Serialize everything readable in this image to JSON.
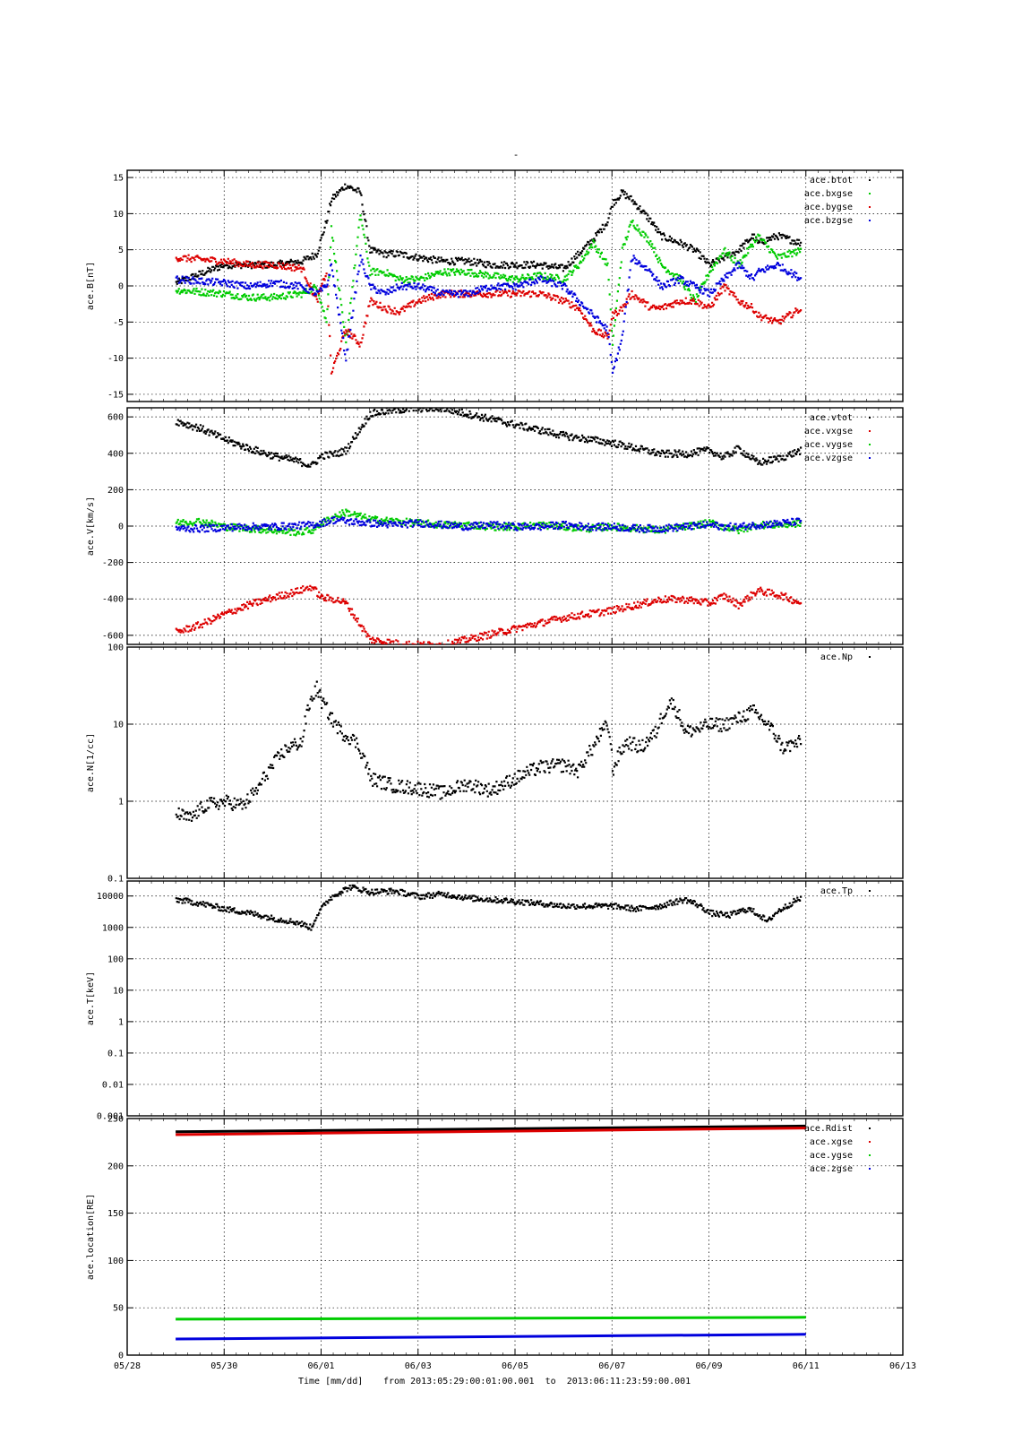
{
  "title": "-",
  "footer": {
    "xlabel": "Time [mm/dd]",
    "range_text": "from 2013:05:29:00:01:00.001  to  2013:06:11:23:59:00.001"
  },
  "x_axis": {
    "range": [
      "05/28",
      "06/13"
    ],
    "ticks": [
      "05/28",
      "05/30",
      "06/01",
      "06/03",
      "06/05",
      "06/07",
      "06/09",
      "06/11",
      "06/13"
    ]
  },
  "chart_data": [
    {
      "type": "scatter",
      "id": "B",
      "ylabel": "ace.B[nT]",
      "ylim": [
        -16,
        16
      ],
      "yticks": [
        -15,
        -10,
        -5,
        0,
        5,
        10,
        15
      ],
      "grid": true,
      "legend_position": "top-right",
      "x": [
        1.0,
        2.0,
        2.5,
        3.0,
        3.6,
        3.9,
        4.1,
        4.2,
        4.5,
        4.8,
        5.0,
        5.3,
        5.6,
        6.0,
        6.5,
        7.0,
        7.5,
        8.0,
        8.5,
        9.0,
        9.3,
        9.6,
        9.9,
        10.0,
        10.2,
        10.4,
        10.8,
        11.0,
        11.4,
        11.7,
        12.0,
        12.3,
        12.6,
        12.9,
        13.0,
        13.4,
        13.9
      ],
      "series": [
        {
          "name": "ace.btot",
          "color": "#000000",
          "values": [
            0.5,
            3.0,
            3.0,
            3.0,
            3.5,
            4.5,
            9.0,
            12.0,
            14.0,
            13.0,
            5.0,
            4.5,
            4.5,
            4.0,
            3.5,
            3.5,
            3.0,
            3.0,
            3.0,
            2.5,
            4.5,
            6.5,
            9.0,
            11.5,
            13.0,
            12.0,
            9.0,
            7.0,
            6.0,
            5.0,
            3.0,
            4.0,
            5.0,
            7.0,
            6.0,
            7.0,
            6.0
          ]
        },
        {
          "name": "ace.bxgse",
          "color": "#00cc00",
          "values": [
            -0.5,
            -1.0,
            -1.5,
            -1.5,
            -1.0,
            0.0,
            -5.0,
            8.0,
            -8.0,
            10.0,
            2.0,
            2.0,
            1.0,
            1.0,
            2.0,
            2.0,
            1.5,
            1.0,
            1.5,
            1.0,
            3.0,
            6.0,
            3.0,
            -8.0,
            5.0,
            9.0,
            6.0,
            3.0,
            1.0,
            -2.0,
            2.0,
            5.0,
            3.0,
            6.0,
            7.0,
            4.0,
            5.0
          ]
        },
        {
          "name": "ace.bygse",
          "color": "#dd0000",
          "values": [
            4.0,
            3.5,
            3.0,
            3.0,
            2.5,
            -2.0,
            2.0,
            -12.0,
            -6.0,
            -8.0,
            -2.0,
            -3.0,
            -3.5,
            -2.0,
            -1.0,
            -1.0,
            -1.0,
            -1.0,
            -1.0,
            -2.0,
            -3.0,
            -6.0,
            -7.0,
            -4.0,
            -3.0,
            -1.0,
            -3.0,
            -3.0,
            -2.0,
            -2.0,
            -3.0,
            0.0,
            -2.0,
            -3.0,
            -4.0,
            -5.0,
            -3.0
          ]
        },
        {
          "name": "ace.bzgse",
          "color": "#0000dd",
          "values": [
            1.0,
            0.5,
            0.0,
            0.5,
            0.0,
            -1.0,
            0.0,
            3.0,
            -10.0,
            4.0,
            0.0,
            -1.0,
            0.0,
            0.0,
            -1.0,
            -1.0,
            0.0,
            0.0,
            1.0,
            0.0,
            -2.0,
            -4.0,
            -6.0,
            -12.0,
            -7.0,
            4.0,
            2.0,
            0.0,
            1.0,
            0.0,
            -1.0,
            1.0,
            3.0,
            1.0,
            2.0,
            3.0,
            1.0
          ]
        }
      ]
    },
    {
      "type": "scatter",
      "id": "V",
      "ylabel": "ace.V[km/s]",
      "ylim": [
        -650,
        650
      ],
      "yticks": [
        -600,
        -400,
        -200,
        0,
        200,
        400,
        600
      ],
      "grid": true,
      "legend_position": "top-right",
      "x": [
        1.0,
        1.5,
        2.0,
        2.5,
        3.0,
        3.5,
        3.8,
        4.0,
        4.3,
        4.5,
        5.0,
        5.5,
        6.0,
        6.5,
        7.0,
        7.5,
        8.0,
        8.5,
        9.0,
        9.5,
        10.0,
        10.5,
        11.0,
        11.5,
        12.0,
        12.3,
        12.6,
        13.0,
        13.5,
        13.9
      ],
      "series": [
        {
          "name": "ace.vtot",
          "color": "#000000",
          "values": [
            580,
            540,
            480,
            430,
            390,
            360,
            335,
            390,
            400,
            420,
            620,
            640,
            650,
            650,
            620,
            590,
            560,
            530,
            500,
            480,
            460,
            430,
            400,
            400,
            420,
            380,
            430,
            350,
            380,
            420
          ]
        },
        {
          "name": "ace.vxgse",
          "color": "#dd0000",
          "values": [
            -580,
            -540,
            -480,
            -430,
            -390,
            -355,
            -330,
            -390,
            -400,
            -420,
            -620,
            -640,
            -650,
            -650,
            -620,
            -590,
            -560,
            -530,
            -500,
            -480,
            -460,
            -430,
            -400,
            -400,
            -420,
            -380,
            -430,
            -350,
            -380,
            -420
          ]
        },
        {
          "name": "ace.vygse",
          "color": "#00cc00",
          "values": [
            20,
            30,
            0,
            -10,
            -20,
            -30,
            -20,
            20,
            60,
            80,
            40,
            30,
            20,
            10,
            10,
            0,
            0,
            10,
            0,
            -10,
            0,
            -10,
            -20,
            0,
            20,
            0,
            -20,
            10,
            10,
            20
          ]
        },
        {
          "name": "ace.vzgse",
          "color": "#0000dd",
          "values": [
            -10,
            -10,
            -5,
            0,
            0,
            5,
            10,
            20,
            40,
            30,
            20,
            10,
            20,
            10,
            0,
            10,
            0,
            0,
            10,
            0,
            0,
            -10,
            -10,
            0,
            10,
            0,
            0,
            10,
            20,
            30
          ]
        }
      ]
    },
    {
      "type": "scatter",
      "id": "N",
      "ylabel": "ace.N[1/cc]",
      "yscale": "log",
      "ylim": [
        0.1,
        100
      ],
      "yticks": [
        0.1,
        1,
        10,
        100
      ],
      "grid": true,
      "legend_position": "top-right",
      "x": [
        1.0,
        1.3,
        1.6,
        2.0,
        2.4,
        2.7,
        3.0,
        3.3,
        3.6,
        3.9,
        4.0,
        4.2,
        4.4,
        4.7,
        5.0,
        5.5,
        6.0,
        6.5,
        7.0,
        7.5,
        8.0,
        8.5,
        9.0,
        9.3,
        9.6,
        9.9,
        10.0,
        10.3,
        10.6,
        10.9,
        11.2,
        11.5,
        11.8,
        12.0,
        12.3,
        12.6,
        12.9,
        13.2,
        13.5,
        13.9
      ],
      "series": [
        {
          "name": "ace.Np",
          "color": "#000000",
          "values": [
            0.7,
            0.6,
            0.9,
            1.0,
            0.9,
            1.5,
            3.0,
            5.0,
            6.0,
            30.0,
            20.0,
            12.0,
            8.0,
            6.0,
            2.0,
            1.6,
            1.5,
            1.3,
            1.7,
            1.4,
            2.0,
            2.8,
            3.0,
            2.5,
            5.0,
            10.0,
            2.5,
            6.0,
            5.0,
            8.0,
            20.0,
            8.0,
            9.0,
            10.0,
            10.0,
            12.0,
            15.0,
            10.0,
            5.0,
            6.0
          ]
        }
      ]
    },
    {
      "type": "scatter",
      "id": "T",
      "ylabel": "ace.T[keV]",
      "yscale": "log",
      "ylim": [
        0.001,
        30000
      ],
      "yticks": [
        0.001,
        0.01,
        0.1,
        1,
        10,
        100,
        1000,
        10000
      ],
      "grid": true,
      "legend_position": "top-right",
      "x": [
        1.0,
        1.5,
        2.0,
        2.5,
        3.0,
        3.5,
        3.8,
        4.0,
        4.3,
        4.6,
        5.0,
        5.5,
        6.0,
        6.5,
        7.0,
        7.5,
        8.0,
        8.5,
        9.0,
        9.5,
        10.0,
        10.5,
        11.0,
        11.5,
        12.0,
        12.4,
        12.8,
        13.2,
        13.6,
        13.9
      ],
      "series": [
        {
          "name": "ace.Tp",
          "color": "#000000",
          "values": [
            8000,
            6000,
            4000,
            3000,
            2000,
            1500,
            1000,
            4000,
            12000,
            20000,
            14000,
            15000,
            10000,
            12000,
            9000,
            8000,
            7000,
            6000,
            5000,
            5000,
            5000,
            4000,
            5000,
            8000,
            3000,
            2500,
            4000,
            1500,
            5000,
            9000
          ]
        }
      ]
    },
    {
      "type": "line",
      "id": "loc",
      "ylabel": "ace.location[RE]",
      "ylim": [
        0,
        250
      ],
      "yticks": [
        0,
        50,
        100,
        150,
        200,
        250
      ],
      "grid": true,
      "legend_position": "top-right",
      "x": [
        1.0,
        14.0
      ],
      "series": [
        {
          "name": "ace.Rdist",
          "color": "#000000",
          "values": [
            236,
            242
          ]
        },
        {
          "name": "ace.xgse",
          "color": "#dd0000",
          "values": [
            233,
            240
          ]
        },
        {
          "name": "ace.ygse",
          "color": "#00cc00",
          "values": [
            38,
            40
          ]
        },
        {
          "name": "ace.zgse",
          "color": "#0000dd",
          "values": [
            17,
            22
          ]
        }
      ]
    }
  ]
}
